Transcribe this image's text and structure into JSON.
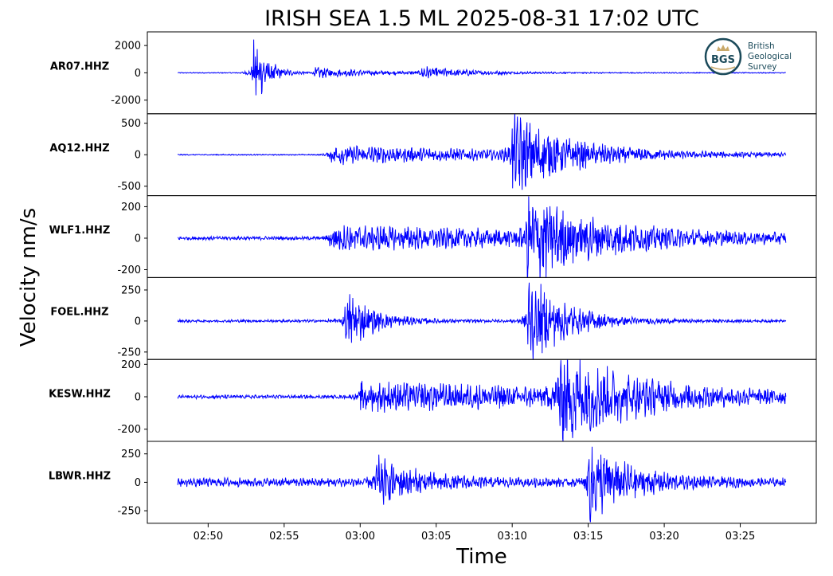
{
  "title": "IRISH SEA 1.5 ML   2025-08-31 17:02 UTC",
  "xlabel": "Time",
  "ylabel": "Velocity nm/s",
  "logo": {
    "abbr": "BGS",
    "line1": "British",
    "line2": "Geological",
    "line3": "Survey"
  },
  "colors": {
    "trace": "#0000ff",
    "axes": "#000000",
    "logo": "#1b4a5a",
    "logo_accent": "#c9a96a"
  },
  "chart_data": {
    "type": "line",
    "x_unit": "time (HH:MM)",
    "xlim": [
      "02:46",
      "03:30"
    ],
    "x_ticks": [
      "02:50",
      "02:55",
      "03:00",
      "03:05",
      "03:10",
      "03:15",
      "03:20",
      "03:25"
    ],
    "data_start": "02:48",
    "data_end": "03:28",
    "panels": [
      {
        "station": "AR07.HHZ",
        "ylim": [
          -3000,
          3000
        ],
        "y_ticks": [
          2000,
          0,
          -2000
        ],
        "noise": 30,
        "bursts": [
          {
            "t": "02:53",
            "amp": 2500,
            "decay": 0.9
          },
          {
            "t": "02:57",
            "amp": 350,
            "decay": 4.0
          },
          {
            "t": "03:04",
            "amp": 400,
            "decay": 3.0
          }
        ]
      },
      {
        "station": "AQ12.HHZ",
        "ylim": [
          -650,
          650
        ],
        "y_ticks": [
          500,
          0,
          -500
        ],
        "noise": 8,
        "bursts": [
          {
            "t": "02:58",
            "amp": 140,
            "decay": 15.0
          },
          {
            "t": "03:10",
            "amp": 560,
            "decay": 3.5
          }
        ]
      },
      {
        "station": "WLF1.HHZ",
        "ylim": [
          -250,
          270
        ],
        "y_ticks": [
          200,
          0,
          -200
        ],
        "noise": 10,
        "bursts": [
          {
            "t": "02:58",
            "amp": 70,
            "decay": 25.0
          },
          {
            "t": "03:11",
            "amp": 240,
            "decay": 4.0
          }
        ]
      },
      {
        "station": "FOEL.HHZ",
        "ylim": [
          -310,
          350
        ],
        "y_ticks": [
          250,
          0,
          -250
        ],
        "noise": 10,
        "bursts": [
          {
            "t": "02:59",
            "amp": 230,
            "decay": 1.8
          },
          {
            "t": "03:11",
            "amp": 350,
            "decay": 2.5
          }
        ]
      },
      {
        "station": "KESW.HHZ",
        "ylim": [
          -275,
          230
        ],
        "y_ticks": [
          200,
          0,
          -200
        ],
        "noise": 10,
        "bursts": [
          {
            "t": "03:00",
            "amp": 80,
            "decay": 25.0
          },
          {
            "t": "03:13",
            "amp": 250,
            "decay": 4.0
          }
        ]
      },
      {
        "station": "LBWR.HHZ",
        "ylim": [
          -360,
          360
        ],
        "y_ticks": [
          250,
          0,
          -250
        ],
        "noise": 35,
        "bursts": [
          {
            "t": "03:01",
            "amp": 210,
            "decay": 2.5
          },
          {
            "t": "03:15",
            "amp": 330,
            "decay": 2.5
          }
        ]
      }
    ]
  }
}
